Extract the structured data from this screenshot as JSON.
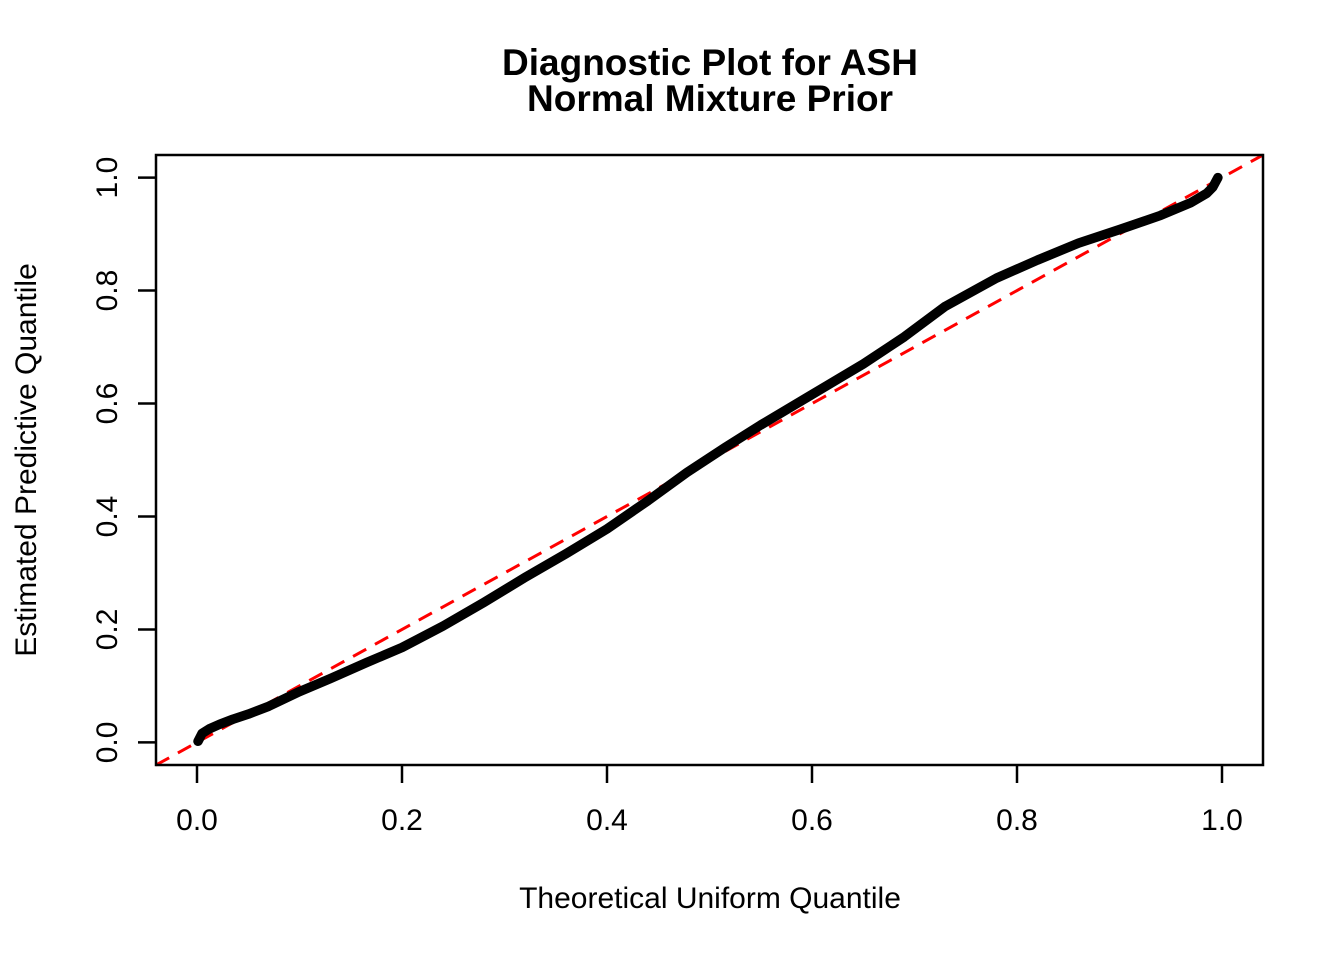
{
  "title": {
    "line1": "Diagnostic Plot for ASH",
    "line2": "Normal Mixture Prior"
  },
  "chart_data": {
    "type": "line",
    "title": "Diagnostic Plot for ASH\nNormal Mixture Prior",
    "xlabel": "Theoretical Uniform Quantile",
    "ylabel": "Estimated Predictive Quantile",
    "xlim": [
      -0.04,
      1.04
    ],
    "ylim": [
      -0.04,
      1.04
    ],
    "grid": false,
    "legend": "none",
    "x_ticks": [
      0.0,
      0.2,
      0.4,
      0.6,
      0.8,
      1.0
    ],
    "y_ticks": [
      0.0,
      0.2,
      0.4,
      0.6,
      0.8,
      1.0
    ],
    "x_tick_labels": [
      "0.0",
      "0.2",
      "0.4",
      "0.6",
      "0.8",
      "1.0"
    ],
    "y_tick_labels": [
      "0.0",
      "0.2",
      "0.4",
      "0.6",
      "0.8",
      "1.0"
    ],
    "series": [
      {
        "name": "estimated-predictive-quantile-curve",
        "type": "line",
        "style": "solid",
        "color": "#000000",
        "points": [
          [
            0.001,
            0.002
          ],
          [
            0.005,
            0.016
          ],
          [
            0.012,
            0.024
          ],
          [
            0.022,
            0.032
          ],
          [
            0.035,
            0.041
          ],
          [
            0.05,
            0.05
          ],
          [
            0.07,
            0.064
          ],
          [
            0.1,
            0.09
          ],
          [
            0.13,
            0.113
          ],
          [
            0.165,
            0.141
          ],
          [
            0.2,
            0.168
          ],
          [
            0.24,
            0.206
          ],
          [
            0.28,
            0.248
          ],
          [
            0.32,
            0.292
          ],
          [
            0.36,
            0.334
          ],
          [
            0.4,
            0.378
          ],
          [
            0.44,
            0.428
          ],
          [
            0.478,
            0.478
          ],
          [
            0.515,
            0.522
          ],
          [
            0.55,
            0.562
          ],
          [
            0.6,
            0.616
          ],
          [
            0.65,
            0.67
          ],
          [
            0.69,
            0.718
          ],
          [
            0.73,
            0.772
          ],
          [
            0.78,
            0.822
          ],
          [
            0.82,
            0.854
          ],
          [
            0.86,
            0.884
          ],
          [
            0.9,
            0.908
          ],
          [
            0.94,
            0.933
          ],
          [
            0.97,
            0.956
          ],
          [
            0.985,
            0.972
          ],
          [
            0.991,
            0.983
          ],
          [
            0.996,
            1.0
          ]
        ]
      },
      {
        "name": "reference-diagonal",
        "type": "line",
        "style": "dashed",
        "color": "#FF0000",
        "intercept": 0,
        "slope": 1,
        "points": [
          [
            -0.04,
            -0.04
          ],
          [
            1.04,
            1.04
          ]
        ]
      }
    ]
  },
  "colors": {
    "curve": "#000000",
    "reference": "#FF0000",
    "axis": "#000000",
    "background": "#FFFFFF"
  }
}
